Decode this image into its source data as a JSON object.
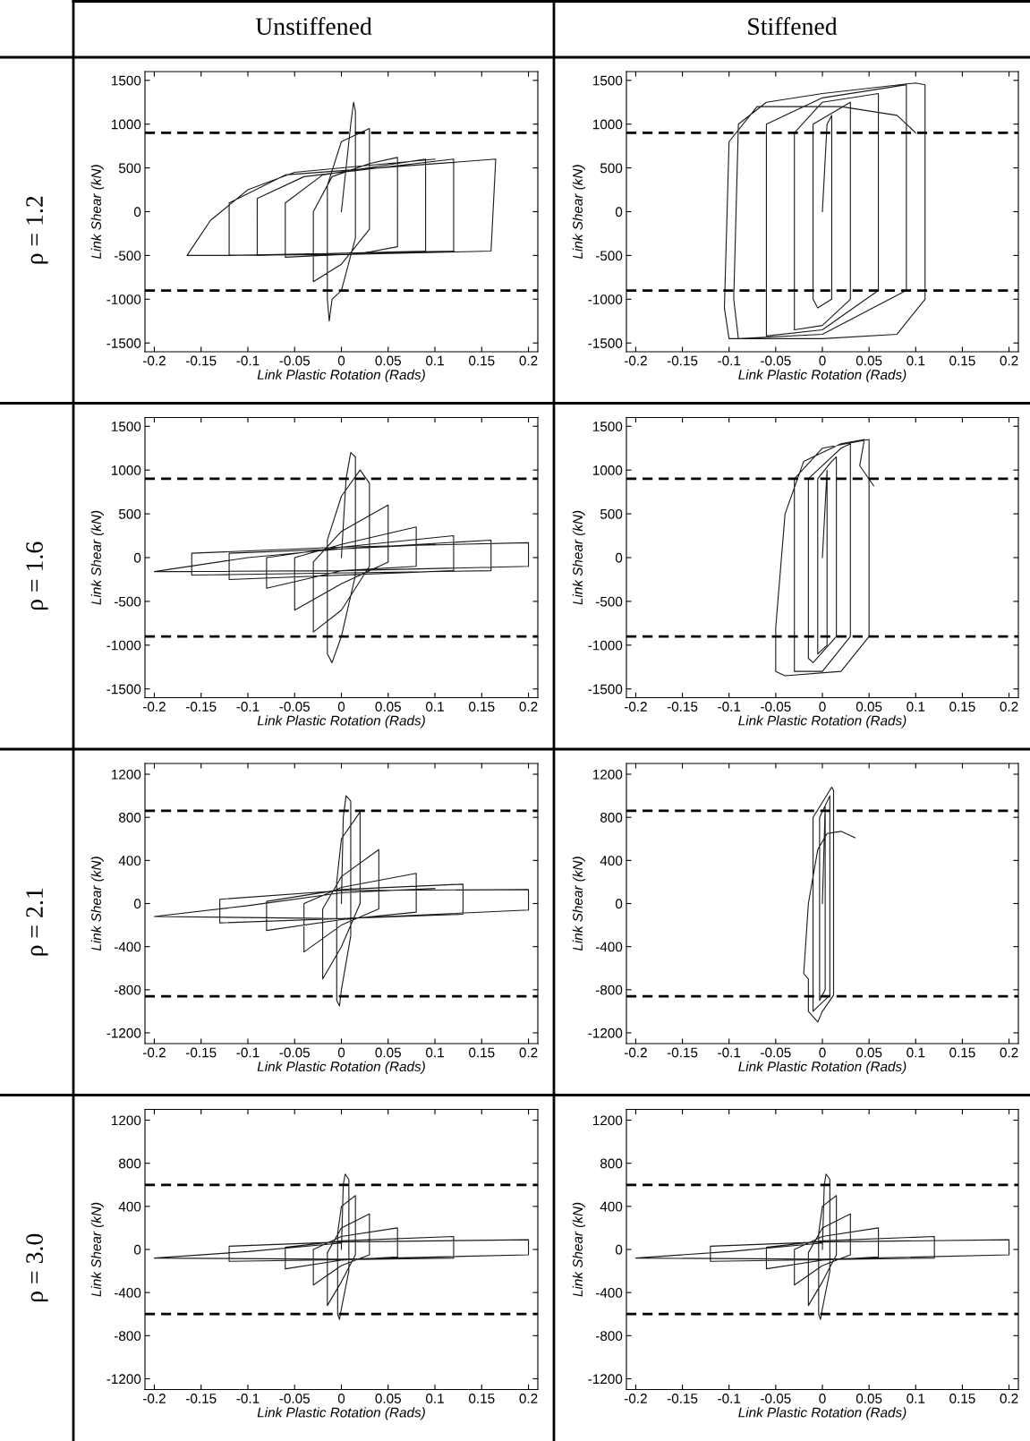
{
  "chart_data": [
    {
      "type": "line",
      "title": "Unstiffened",
      "annotations": [
        "ρ = 1.2"
      ],
      "xlabel": "Link Plastic Rotation (Rads)",
      "ylabel": "Link Shear (kN)",
      "xlim": [
        -0.21,
        0.21
      ],
      "ylim": [
        -1600,
        1600
      ],
      "xticks": [
        -0.2,
        -0.15,
        -0.1,
        -0.05,
        0,
        0.05,
        0.1,
        0.15,
        0.2
      ],
      "yticks": [
        -1500,
        -1000,
        -500,
        0,
        500,
        1000,
        1500
      ],
      "grid": false,
      "line_style": "solid",
      "marker": "none",
      "ref_lines": [
        {
          "axis": "y",
          "value": 900,
          "color": "#000000",
          "line_style": "dashed"
        },
        {
          "axis": "y",
          "value": -900,
          "color": "#000000",
          "line_style": "dashed"
        }
      ],
      "series": [
        {
          "color": "#1a1a1a",
          "x": [
            0,
            0.01,
            0.013,
            0.015,
            0.015,
            0,
            -0.01,
            -0.013,
            -0.015,
            -0.015,
            0,
            0.03,
            0.03,
            0,
            -0.03,
            -0.03,
            -0.01,
            0.03,
            0.06,
            0.06,
            0.02,
            -0.06,
            -0.06,
            -0.02,
            0.09,
            0.09,
            -0.09,
            -0.09,
            -0.04,
            0.12,
            0.12,
            -0.12,
            -0.12,
            -0.06,
            0.165,
            0.16,
            0,
            -0.165,
            -0.14,
            -0.1,
            -0.05,
            0.1
          ],
          "values": [
            0,
            1000,
            1250,
            1150,
            -300,
            -900,
            -1000,
            -1250,
            -1000,
            300,
            800,
            950,
            -200,
            -600,
            -800,
            0,
            400,
            550,
            620,
            -400,
            -480,
            -520,
            100,
            420,
            600,
            -450,
            -500,
            150,
            400,
            600,
            -450,
            -500,
            100,
            420,
            600,
            -450,
            -490,
            -500,
            -100,
            250,
            450,
            600
          ]
        }
      ]
    },
    {
      "type": "line",
      "title": "Stiffened",
      "xlabel": "Link Plastic Rotation (Rads)",
      "ylabel": "Link Shear (kN)",
      "xlim": [
        -0.21,
        0.21
      ],
      "ylim": [
        -1600,
        1600
      ],
      "xticks": [
        -0.2,
        -0.15,
        -0.1,
        -0.05,
        0,
        0.05,
        0.1,
        0.15,
        0.2
      ],
      "yticks": [
        -1500,
        -1000,
        -500,
        0,
        500,
        1000,
        1500
      ],
      "grid": false,
      "line_style": "solid",
      "marker": "none",
      "ref_lines": [
        {
          "axis": "y",
          "value": 900,
          "color": "#000000",
          "line_style": "dashed"
        },
        {
          "axis": "y",
          "value": -900,
          "color": "#000000",
          "line_style": "dashed"
        }
      ],
      "series": [
        {
          "color": "#1a1a1a",
          "x": [
            0,
            0.005,
            0.01,
            0.01,
            -0.005,
            -0.01,
            -0.01,
            0.03,
            0.03,
            0,
            -0.03,
            -0.03,
            0,
            0.06,
            0.06,
            0,
            -0.06,
            -0.06,
            0,
            0.09,
            0.09,
            0,
            -0.09,
            -0.095,
            -0.09,
            -0.06,
            0,
            0.1,
            0.11,
            0.11,
            0.08,
            0,
            -0.1,
            -0.105,
            -0.1,
            -0.07,
            0.02,
            0.08,
            0.1
          ],
          "values": [
            0,
            1000,
            1100,
            -1000,
            -1100,
            -1000,
            1000,
            1250,
            -1000,
            -1300,
            -1350,
            900,
            1250,
            1350,
            -900,
            -1350,
            -1420,
            1000,
            1300,
            1450,
            -900,
            -1400,
            -1450,
            -1000,
            1000,
            1250,
            1350,
            1470,
            1450,
            -1000,
            -1400,
            -1450,
            -1450,
            -1100,
            800,
            1200,
            1200,
            1100,
            900
          ]
        }
      ]
    },
    {
      "type": "line",
      "annotations": [
        "ρ = 1.6"
      ],
      "xlabel": "Link Plastic Rotation (Rads)",
      "ylabel": "Link Shear (kN)",
      "xlim": [
        -0.21,
        0.21
      ],
      "ylim": [
        -1600,
        1600
      ],
      "xticks": [
        -0.2,
        -0.15,
        -0.1,
        -0.05,
        0,
        0.05,
        0.1,
        0.15,
        0.2
      ],
      "yticks": [
        -1500,
        -1000,
        -500,
        0,
        500,
        1000,
        1500
      ],
      "grid": false,
      "line_style": "solid",
      "marker": "none",
      "ref_lines": [
        {
          "axis": "y",
          "value": 900,
          "color": "#000000",
          "line_style": "dashed"
        },
        {
          "axis": "y",
          "value": -900,
          "color": "#000000",
          "line_style": "dashed"
        }
      ],
      "series": [
        {
          "color": "#1a1a1a",
          "x": [
            0,
            0.005,
            0.01,
            0.015,
            0.015,
            0,
            -0.01,
            -0.015,
            -0.015,
            0,
            0.02,
            0.03,
            0.03,
            0,
            -0.03,
            -0.03,
            0,
            0.05,
            0.05,
            0,
            -0.05,
            -0.05,
            0,
            0.08,
            0.08,
            0,
            -0.08,
            -0.08,
            0,
            0.12,
            0.12,
            -0.12,
            -0.12,
            0,
            0.16,
            0.16,
            -0.16,
            -0.16,
            0,
            0.2,
            0.2,
            0,
            -0.2,
            -0.1,
            0,
            0.1
          ],
          "values": [
            0,
            900,
            1200,
            1150,
            -200,
            -900,
            -1200,
            -1100,
            200,
            700,
            1000,
            850,
            -100,
            -600,
            -850,
            -50,
            300,
            600,
            -50,
            -300,
            -600,
            0,
            150,
            350,
            -100,
            -150,
            -350,
            0,
            120,
            250,
            -150,
            -250,
            50,
            100,
            200,
            -150,
            -200,
            50,
            120,
            170,
            -100,
            -150,
            -160,
            0,
            100,
            150
          ]
        }
      ]
    },
    {
      "type": "line",
      "xlabel": "Link Plastic Rotation (Rads)",
      "ylabel": "Link Shear (kN)",
      "xlim": [
        -0.21,
        0.21
      ],
      "ylim": [
        -1600,
        1600
      ],
      "xticks": [
        -0.2,
        -0.15,
        -0.1,
        -0.05,
        0,
        0.05,
        0.1,
        0.15,
        0.2
      ],
      "yticks": [
        -1500,
        -1000,
        -500,
        0,
        500,
        1000,
        1500
      ],
      "grid": false,
      "line_style": "solid",
      "marker": "none",
      "ref_lines": [
        {
          "axis": "y",
          "value": 900,
          "color": "#000000",
          "line_style": "dashed"
        },
        {
          "axis": "y",
          "value": -900,
          "color": "#000000",
          "line_style": "dashed"
        }
      ],
      "series": [
        {
          "color": "#1a1a1a",
          "x": [
            0,
            0.005,
            0.005,
            -0.005,
            -0.005,
            0.01,
            0.015,
            0.015,
            -0.01,
            -0.015,
            -0.015,
            0.02,
            0.03,
            0.03,
            0,
            -0.03,
            -0.03,
            0,
            0.05,
            0.05,
            0.02,
            -0.04,
            -0.05,
            -0.05,
            -0.04,
            -0.02,
            0.02,
            0.045,
            0.04,
            0.055
          ],
          "values": [
            0,
            1000,
            -1000,
            -1100,
            900,
            1100,
            1150,
            -900,
            -1200,
            -1150,
            900,
            1250,
            1300,
            -900,
            -1300,
            -1300,
            900,
            1250,
            1350,
            -900,
            -1300,
            -1350,
            -1300,
            -800,
            500,
            1100,
            1300,
            1350,
            1050,
            820
          ]
        }
      ]
    },
    {
      "type": "line",
      "annotations": [
        "ρ = 2.1"
      ],
      "xlabel": "Link Plastic Rotation (Rads)",
      "ylabel": "Link Shear (kN)",
      "xlim": [
        -0.21,
        0.21
      ],
      "ylim": [
        -1300,
        1300
      ],
      "xticks": [
        -0.2,
        -0.15,
        -0.1,
        -0.05,
        0,
        0.05,
        0.1,
        0.15,
        0.2
      ],
      "yticks": [
        -1200,
        -800,
        -400,
        0,
        400,
        800,
        1200
      ],
      "grid": false,
      "line_style": "solid",
      "marker": "none",
      "ref_lines": [
        {
          "axis": "y",
          "value": 860,
          "color": "#000000",
          "line_style": "dashed"
        },
        {
          "axis": "y",
          "value": -860,
          "color": "#000000",
          "line_style": "dashed"
        }
      ],
      "series": [
        {
          "color": "#1a1a1a",
          "x": [
            0,
            0.002,
            0.005,
            0.01,
            0.01,
            0,
            -0.002,
            -0.005,
            -0.005,
            0,
            0.02,
            0.02,
            0,
            -0.02,
            -0.02,
            0,
            0.04,
            0.04,
            0,
            -0.04,
            -0.04,
            0,
            0.08,
            0.08,
            0,
            -0.08,
            -0.08,
            0,
            0.13,
            0.13,
            -0.13,
            -0.13,
            0,
            0.2,
            0.2,
            0,
            -0.2,
            -0.1,
            0,
            0.1
          ],
          "values": [
            0,
            800,
            1000,
            950,
            -300,
            -800,
            -950,
            -900,
            200,
            600,
            850,
            0,
            -400,
            -700,
            -50,
            250,
            500,
            -50,
            -200,
            -450,
            0,
            150,
            280,
            -80,
            -150,
            -250,
            20,
            130,
            180,
            -100,
            -180,
            40,
            120,
            130,
            -60,
            -140,
            -120,
            -20,
            100,
            140
          ]
        }
      ]
    },
    {
      "type": "line",
      "xlabel": "Link Plastic Rotation (Rads)",
      "ylabel": "Link Shear (kN)",
      "xlim": [
        -0.21,
        0.21
      ],
      "ylim": [
        -1300,
        1300
      ],
      "xticks": [
        -0.2,
        -0.15,
        -0.1,
        -0.05,
        0,
        0.05,
        0.1,
        0.15,
        0.2
      ],
      "yticks": [
        -1200,
        -800,
        -400,
        0,
        400,
        800,
        1200
      ],
      "grid": false,
      "line_style": "solid",
      "marker": "none",
      "ref_lines": [
        {
          "axis": "y",
          "value": 860,
          "color": "#000000",
          "line_style": "dashed"
        },
        {
          "axis": "y",
          "value": -860,
          "color": "#000000",
          "line_style": "dashed"
        }
      ],
      "series": [
        {
          "color": "#1a1a1a",
          "x": [
            0,
            0.003,
            0.003,
            -0.003,
            -0.003,
            0.008,
            0.008,
            -0.01,
            -0.01,
            0.01,
            0.012,
            0.012,
            0,
            -0.005,
            -0.015,
            -0.015,
            -0.02,
            -0.015,
            -0.005,
            0.005,
            0.02,
            0.035
          ],
          "values": [
            0,
            900,
            -800,
            -900,
            800,
            1000,
            -850,
            -1000,
            800,
            1080,
            1050,
            -850,
            -1000,
            -1100,
            -1000,
            -700,
            -650,
            0,
            500,
            650,
            670,
            610
          ]
        }
      ]
    },
    {
      "type": "line",
      "annotations": [
        "ρ = 3.0"
      ],
      "xlabel": "Link Plastic Rotation (Rads)",
      "ylabel": "Link Shear (kN)",
      "xlim": [
        -0.21,
        0.21
      ],
      "ylim": [
        -1300,
        1300
      ],
      "xticks": [
        -0.2,
        -0.15,
        -0.1,
        -0.05,
        0,
        0.05,
        0.1,
        0.15,
        0.2
      ],
      "yticks": [
        -1200,
        -800,
        -400,
        0,
        400,
        800,
        1200
      ],
      "grid": false,
      "line_style": "solid",
      "marker": "none",
      "ref_lines": [
        {
          "axis": "y",
          "value": 600,
          "color": "#000000",
          "line_style": "dashed"
        },
        {
          "axis": "y",
          "value": -600,
          "color": "#000000",
          "line_style": "dashed"
        }
      ],
      "series": [
        {
          "color": "#1a1a1a",
          "x": [
            0,
            0.002,
            0.004,
            0.008,
            0.008,
            0,
            -0.002,
            -0.004,
            -0.004,
            0,
            0.015,
            0.015,
            0,
            -0.015,
            -0.015,
            0,
            0.03,
            0.03,
            0,
            -0.03,
            -0.03,
            0,
            0.06,
            0.06,
            0,
            -0.06,
            -0.06,
            0,
            0.12,
            0.12,
            -0.12,
            -0.12,
            0,
            0.2,
            0.2,
            0,
            -0.2,
            -0.1,
            0
          ],
          "values": [
            0,
            600,
            700,
            650,
            -200,
            -550,
            -650,
            -600,
            150,
            400,
            500,
            -50,
            -300,
            -520,
            -30,
            200,
            330,
            -50,
            -150,
            -330,
            0,
            120,
            200,
            -70,
            -100,
            -180,
            20,
            80,
            120,
            -80,
            -110,
            30,
            70,
            90,
            -50,
            -90,
            -80,
            -20,
            60
          ]
        }
      ]
    },
    {
      "type": "line",
      "xlabel": "Link Plastic Rotation (Rads)",
      "ylabel": "Link Shear (kN)",
      "xlim": [
        -0.21,
        0.21
      ],
      "ylim": [
        -1300,
        1300
      ],
      "xticks": [
        -0.2,
        -0.15,
        -0.1,
        -0.05,
        0,
        0.05,
        0.1,
        0.15,
        0.2
      ],
      "yticks": [
        -1200,
        -800,
        -400,
        0,
        400,
        800,
        1200
      ],
      "grid": false,
      "line_style": "solid",
      "marker": "none",
      "ref_lines": [
        {
          "axis": "y",
          "value": 600,
          "color": "#000000",
          "line_style": "dashed"
        },
        {
          "axis": "y",
          "value": -600,
          "color": "#000000",
          "line_style": "dashed"
        }
      ],
      "series": [
        {
          "color": "#1a1a1a",
          "x": [
            0,
            0.002,
            0.004,
            0.008,
            0.008,
            0,
            -0.002,
            -0.004,
            -0.004,
            0,
            0.015,
            0.015,
            0,
            -0.015,
            -0.015,
            0,
            0.03,
            0.03,
            0,
            -0.03,
            -0.03,
            0,
            0.06,
            0.06,
            0,
            -0.06,
            -0.06,
            0,
            0.12,
            0.12,
            -0.12,
            -0.12,
            0,
            0.2,
            0.2,
            0,
            -0.2,
            -0.1,
            0
          ],
          "values": [
            0,
            600,
            700,
            650,
            -200,
            -550,
            -650,
            -600,
            150,
            400,
            500,
            -50,
            -300,
            -520,
            -30,
            200,
            330,
            -50,
            -150,
            -330,
            0,
            120,
            200,
            -70,
            -100,
            -180,
            20,
            80,
            120,
            -80,
            -110,
            30,
            70,
            90,
            -50,
            -90,
            -80,
            -20,
            60
          ]
        }
      ]
    }
  ]
}
